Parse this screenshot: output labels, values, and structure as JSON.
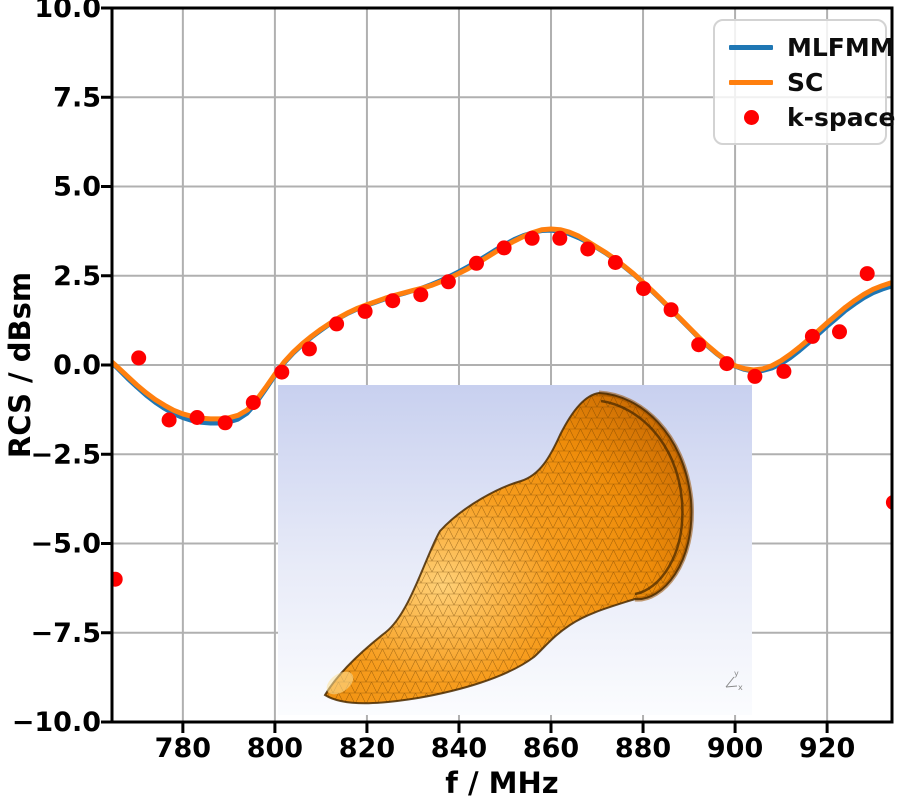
{
  "figure": {
    "kind": "scientific line plot with scatter overlay and 3D-model inset"
  },
  "chart_data": {
    "type": "line",
    "title": "",
    "xlabel": "f / MHz",
    "ylabel": "RCS / dBsm",
    "xlim": [
      764.6,
      934.1
    ],
    "ylim": [
      -10.0,
      10.0
    ],
    "grid": true,
    "grid_color": "#b0b0b0",
    "x_ticks": [
      780,
      800,
      820,
      840,
      860,
      880,
      900,
      920
    ],
    "x_tick_labels": [
      "780",
      "800",
      "820",
      "840",
      "860",
      "880",
      "900",
      "920"
    ],
    "y_ticks": [
      -10.0,
      -7.5,
      -5.0,
      -2.5,
      0.0,
      2.5,
      5.0,
      7.5,
      10.0
    ],
    "y_tick_labels": [
      "−10.0",
      "−7.5",
      "−5.0",
      "−2.5",
      "0.0",
      "2.5",
      "5.0",
      "7.5",
      "10.0"
    ],
    "legend": {
      "position": "top-right",
      "entries": [
        {
          "label": "MLFMM",
          "color": "#1f77b4",
          "marker": "line"
        },
        {
          "label": "SC",
          "color": "#ff7f0e",
          "marker": "line"
        },
        {
          "label": "k-space",
          "color": "#fe0000",
          "marker": "dot"
        }
      ]
    },
    "series": [
      {
        "name": "MLFMM",
        "type": "line",
        "color": "#1f77b4",
        "width": 4.5,
        "points": [
          [
            764.6,
            0.05
          ],
          [
            766,
            -0.12
          ],
          [
            768,
            -0.38
          ],
          [
            770,
            -0.62
          ],
          [
            772,
            -0.85
          ],
          [
            774,
            -1.05
          ],
          [
            776,
            -1.22
          ],
          [
            778,
            -1.37
          ],
          [
            780,
            -1.48
          ],
          [
            782,
            -1.56
          ],
          [
            784,
            -1.61
          ],
          [
            786,
            -1.63
          ],
          [
            788,
            -1.63
          ],
          [
            790,
            -1.6
          ],
          [
            792,
            -1.52
          ],
          [
            794,
            -1.35
          ],
          [
            796,
            -1.05
          ],
          [
            798,
            -0.68
          ],
          [
            800,
            -0.3
          ],
          [
            802,
            0.05
          ],
          [
            804,
            0.33
          ],
          [
            806,
            0.57
          ],
          [
            808,
            0.78
          ],
          [
            810,
            0.97
          ],
          [
            812,
            1.15
          ],
          [
            814,
            1.31
          ],
          [
            816,
            1.45
          ],
          [
            818,
            1.57
          ],
          [
            820,
            1.67
          ],
          [
            822,
            1.76
          ],
          [
            824,
            1.85
          ],
          [
            826,
            1.93
          ],
          [
            828,
            2.0
          ],
          [
            830,
            2.08
          ],
          [
            832,
            2.16
          ],
          [
            834,
            2.26
          ],
          [
            836,
            2.37
          ],
          [
            838,
            2.49
          ],
          [
            840,
            2.62
          ],
          [
            842,
            2.76
          ],
          [
            844,
            2.91
          ],
          [
            846,
            3.07
          ],
          [
            848,
            3.23
          ],
          [
            850,
            3.38
          ],
          [
            852,
            3.52
          ],
          [
            854,
            3.63
          ],
          [
            856,
            3.71
          ],
          [
            858,
            3.76
          ],
          [
            860,
            3.77
          ],
          [
            862,
            3.74
          ],
          [
            864,
            3.67
          ],
          [
            866,
            3.56
          ],
          [
            868,
            3.43
          ],
          [
            870,
            3.28
          ],
          [
            872,
            3.12
          ],
          [
            874,
            2.94
          ],
          [
            876,
            2.74
          ],
          [
            878,
            2.53
          ],
          [
            880,
            2.3
          ],
          [
            882,
            2.06
          ],
          [
            884,
            1.81
          ],
          [
            886,
            1.55
          ],
          [
            888,
            1.29
          ],
          [
            890,
            1.03
          ],
          [
            892,
            0.77
          ],
          [
            894,
            0.53
          ],
          [
            896,
            0.31
          ],
          [
            898,
            0.12
          ],
          [
            900,
            -0.04
          ],
          [
            902,
            -0.13
          ],
          [
            904,
            -0.18
          ],
          [
            906,
            -0.16
          ],
          [
            908,
            -0.09
          ],
          [
            910,
            0.03
          ],
          [
            912,
            0.2
          ],
          [
            914,
            0.4
          ],
          [
            916,
            0.62
          ],
          [
            918,
            0.85
          ],
          [
            920,
            1.08
          ],
          [
            922,
            1.3
          ],
          [
            924,
            1.52
          ],
          [
            926,
            1.71
          ],
          [
            928,
            1.88
          ],
          [
            930,
            2.02
          ],
          [
            932,
            2.12
          ],
          [
            934.1,
            2.21
          ]
        ]
      },
      {
        "name": "SC",
        "type": "line",
        "color": "#ff7f0e",
        "width": 5,
        "points": [
          [
            764.6,
            0.08
          ],
          [
            766,
            -0.08
          ],
          [
            768,
            -0.32
          ],
          [
            770,
            -0.56
          ],
          [
            772,
            -0.78
          ],
          [
            774,
            -0.97
          ],
          [
            776,
            -1.13
          ],
          [
            778,
            -1.27
          ],
          [
            780,
            -1.37
          ],
          [
            782,
            -1.44
          ],
          [
            784,
            -1.49
          ],
          [
            786,
            -1.51
          ],
          [
            788,
            -1.51
          ],
          [
            790,
            -1.48
          ],
          [
            792,
            -1.41
          ],
          [
            794,
            -1.26
          ],
          [
            796,
            -0.98
          ],
          [
            798,
            -0.63
          ],
          [
            800,
            -0.26
          ],
          [
            802,
            0.08
          ],
          [
            804,
            0.36
          ],
          [
            806,
            0.6
          ],
          [
            808,
            0.81
          ],
          [
            810,
            1.0
          ],
          [
            812,
            1.17
          ],
          [
            814,
            1.33
          ],
          [
            816,
            1.47
          ],
          [
            818,
            1.59
          ],
          [
            820,
            1.69
          ],
          [
            822,
            1.78
          ],
          [
            824,
            1.87
          ],
          [
            826,
            1.95
          ],
          [
            828,
            2.02
          ],
          [
            830,
            2.09
          ],
          [
            832,
            2.15
          ],
          [
            834,
            2.23
          ],
          [
            836,
            2.33
          ],
          [
            838,
            2.44
          ],
          [
            840,
            2.57
          ],
          [
            842,
            2.7
          ],
          [
            844,
            2.85
          ],
          [
            846,
            3.01
          ],
          [
            848,
            3.17
          ],
          [
            850,
            3.33
          ],
          [
            852,
            3.47
          ],
          [
            854,
            3.6
          ],
          [
            856,
            3.71
          ],
          [
            858,
            3.79
          ],
          [
            860,
            3.81
          ],
          [
            862,
            3.79
          ],
          [
            864,
            3.72
          ],
          [
            866,
            3.61
          ],
          [
            868,
            3.46
          ],
          [
            870,
            3.3
          ],
          [
            872,
            3.14
          ],
          [
            874,
            2.96
          ],
          [
            876,
            2.76
          ],
          [
            878,
            2.55
          ],
          [
            880,
            2.32
          ],
          [
            882,
            2.08
          ],
          [
            884,
            1.83
          ],
          [
            886,
            1.57
          ],
          [
            888,
            1.31
          ],
          [
            890,
            1.05
          ],
          [
            892,
            0.79
          ],
          [
            894,
            0.55
          ],
          [
            896,
            0.33
          ],
          [
            898,
            0.14
          ],
          [
            900,
            -0.02
          ],
          [
            902,
            -0.1
          ],
          [
            904,
            -0.14
          ],
          [
            906,
            -0.11
          ],
          [
            908,
            -0.02
          ],
          [
            910,
            0.12
          ],
          [
            912,
            0.3
          ],
          [
            914,
            0.5
          ],
          [
            916,
            0.72
          ],
          [
            918,
            0.95
          ],
          [
            920,
            1.18
          ],
          [
            922,
            1.4
          ],
          [
            924,
            1.62
          ],
          [
            926,
            1.81
          ],
          [
            928,
            1.98
          ],
          [
            930,
            2.12
          ],
          [
            932,
            2.22
          ],
          [
            934.1,
            2.31
          ]
        ]
      },
      {
        "name": "k-space",
        "type": "scatter",
        "color": "#fe0000",
        "radius": 7.5,
        "points": [
          [
            765.3,
            -6.0
          ],
          [
            770.4,
            0.2
          ],
          [
            777.0,
            -1.54
          ],
          [
            783.1,
            -1.47
          ],
          [
            789.2,
            -1.62
          ],
          [
            795.3,
            -1.05
          ],
          [
            801.5,
            -0.2
          ],
          [
            807.5,
            0.45
          ],
          [
            813.4,
            1.15
          ],
          [
            819.6,
            1.5
          ],
          [
            825.6,
            1.8
          ],
          [
            831.7,
            1.97
          ],
          [
            837.7,
            2.33
          ],
          [
            843.8,
            2.85
          ],
          [
            849.8,
            3.28
          ],
          [
            855.9,
            3.55
          ],
          [
            861.9,
            3.55
          ],
          [
            868.0,
            3.25
          ],
          [
            874.0,
            2.87
          ],
          [
            880.1,
            2.14
          ],
          [
            886.1,
            1.55
          ],
          [
            892.1,
            0.57
          ],
          [
            898.2,
            0.04
          ],
          [
            904.3,
            -0.32
          ],
          [
            910.6,
            -0.18
          ],
          [
            916.8,
            0.8
          ],
          [
            922.7,
            0.93
          ],
          [
            928.7,
            2.56
          ],
          [
            934.4,
            -3.85
          ]
        ]
      }
    ]
  },
  "inset": {
    "content": "3D triangular surface mesh of blunt-nosed cone target",
    "colors": {
      "background_top": "#c8d0ef",
      "background_mid": "#e8ebf8",
      "background_bottom": "#fbfcfe",
      "body_highlight": "#ffd077",
      "body": "#f79d1e",
      "body_mid": "#ee8c0a",
      "body_dark": "#c96a02",
      "body_edge": "#9c5200",
      "mesh_lines": "#5f3600",
      "outline": "#4a2a00",
      "triad": "#888888"
    }
  },
  "style": {
    "axes_color": "#000000",
    "tick_label_color": "#000000",
    "background": "#ffffff"
  }
}
